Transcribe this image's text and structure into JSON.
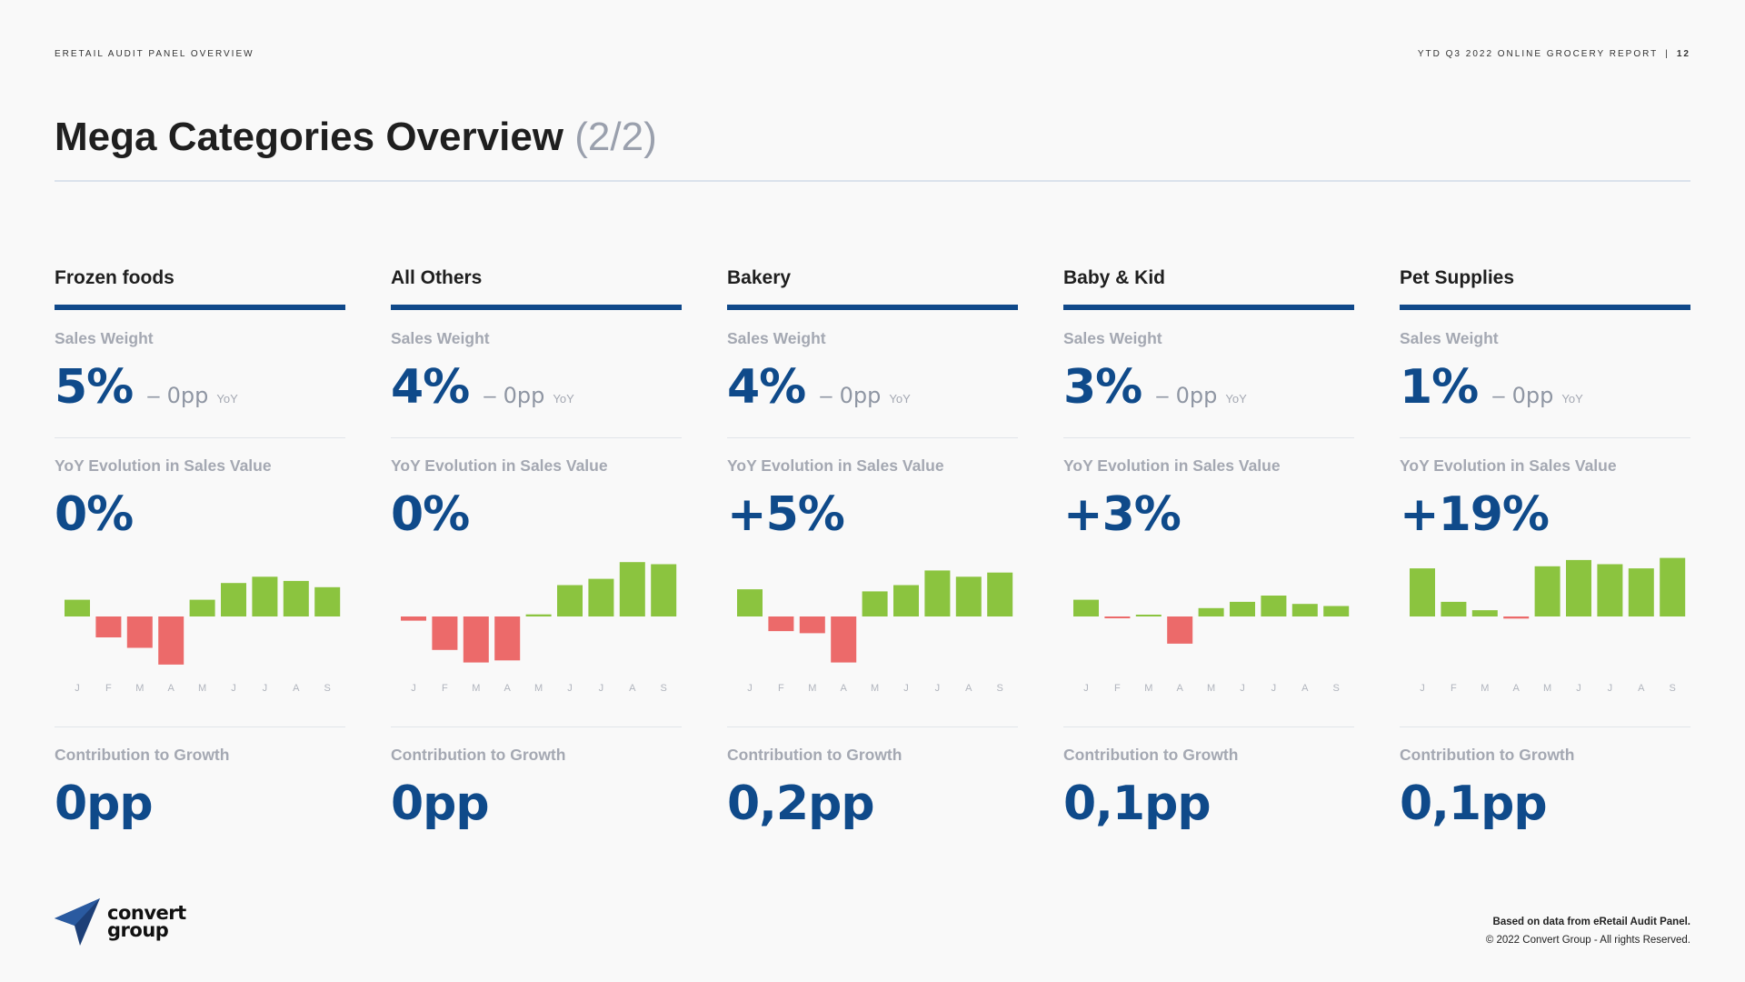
{
  "header": {
    "left": "ERETAIL AUDIT PANEL OVERVIEW",
    "right_report": "YTD Q3 2022  ONLINE GROCERY REPORT",
    "right_sep": "|",
    "page": "12"
  },
  "title": {
    "main": "Mega Categories Overview",
    "sub": "(2/2)"
  },
  "labels": {
    "sales_weight": "Sales Weight",
    "yoy_evolution": "YoY Evolution in Sales Value",
    "contribution": "Contribution to Growth",
    "dash": "–",
    "yoy": "YoY"
  },
  "colors": {
    "positive": "#8bc43f",
    "negative": "#ec6a6a",
    "accent": "#10498a",
    "value": "#0f4a8a"
  },
  "categories": [
    {
      "name": "Frozen foods",
      "sales_weight": "5%",
      "weight_change": "0pp",
      "yoy_evolution": "0%",
      "contribution": "0pp"
    },
    {
      "name": "All Others",
      "sales_weight": "4%",
      "weight_change": "0pp",
      "yoy_evolution": "0%",
      "contribution": "0pp"
    },
    {
      "name": "Bakery",
      "sales_weight": "4%",
      "weight_change": "0pp",
      "yoy_evolution": "+5%",
      "contribution": "0,2pp"
    },
    {
      "name": "Baby & Kid",
      "sales_weight": "3%",
      "weight_change": "0pp",
      "yoy_evolution": "+3%",
      "contribution": "0,1pp"
    },
    {
      "name": "Pet Supplies",
      "sales_weight": "1%",
      "weight_change": "0pp",
      "yoy_evolution": "+19%",
      "contribution": "0,1pp"
    }
  ],
  "chart_data": [
    {
      "type": "bar",
      "title": "Frozen foods",
      "categories": [
        "J",
        "F",
        "M",
        "A",
        "M",
        "J",
        "J",
        "A",
        "S"
      ],
      "values": [
        4,
        -5,
        -7.5,
        -11.5,
        4,
        8,
        9.5,
        8.5,
        7
      ],
      "ylim": [
        -12,
        14
      ],
      "grid": false
    },
    {
      "type": "bar",
      "title": "All Others",
      "categories": [
        "J",
        "F",
        "M",
        "A",
        "M",
        "J",
        "J",
        "A",
        "S"
      ],
      "values": [
        -1,
        -8,
        -11,
        -10.5,
        0.5,
        7.5,
        9,
        13,
        12.5
      ],
      "ylim": [
        -12,
        14
      ],
      "grid": false
    },
    {
      "type": "bar",
      "title": "Bakery",
      "categories": [
        "J",
        "F",
        "M",
        "A",
        "M",
        "J",
        "J",
        "A",
        "S"
      ],
      "values": [
        6.5,
        -3.5,
        -4,
        -11,
        6,
        7.5,
        11,
        9.5,
        10.5
      ],
      "ylim": [
        -12,
        14
      ],
      "grid": false
    },
    {
      "type": "bar",
      "title": "Baby & Kid",
      "categories": [
        "J",
        "F",
        "M",
        "A",
        "M",
        "J",
        "J",
        "A",
        "S"
      ],
      "values": [
        4,
        -0.3,
        0.2,
        -6.5,
        2,
        3.5,
        5,
        3,
        2.5
      ],
      "ylim": [
        -12,
        14
      ],
      "grid": false
    },
    {
      "type": "bar",
      "title": "Pet Supplies",
      "categories": [
        "J",
        "F",
        "M",
        "A",
        "M",
        "J",
        "J",
        "A",
        "S"
      ],
      "values": [
        11.5,
        3.5,
        1.5,
        -0.5,
        12,
        13.5,
        12.5,
        11.5,
        14
      ],
      "ylim": [
        -12,
        14
      ],
      "grid": false
    }
  ],
  "footer": {
    "line1": "Based on data from eRetail Audit Panel.",
    "line2": "© 2022 Convert Group - All rights Reserved."
  },
  "logo": {
    "line1": "convert",
    "line2": "group"
  }
}
